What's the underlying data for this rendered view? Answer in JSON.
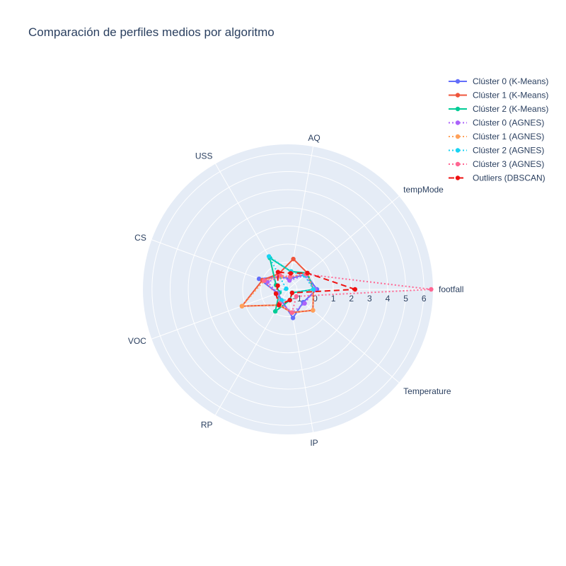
{
  "chart_data": {
    "type": "radar",
    "title": "Comparación de perfiles medios por algoritmo",
    "axes": [
      "footfall",
      "tempMode",
      "AQ",
      "USS",
      "CS",
      "VOC",
      "RP",
      "IP",
      "Temperature"
    ],
    "radial_range": [
      -1.5,
      6.5
    ],
    "radial_ticks": [
      -1,
      0,
      1,
      2,
      3,
      4,
      5,
      6
    ],
    "radial_tick_labels": [
      "−1",
      "0",
      "1",
      "2",
      "3",
      "4",
      "5",
      "6"
    ],
    "legend_position": "top-right",
    "series": [
      {
        "name": "Clúster 0 (K-Means)",
        "color": "#636efa",
        "dash": "solid",
        "values": [
          0.1,
          -0.2,
          -0.9,
          -0.7,
          0.2,
          -0.9,
          -0.8,
          0.1,
          -0.4
        ]
      },
      {
        "name": "Clúster 1 (K-Means)",
        "color": "#ef553b",
        "dash": "solid",
        "values": [
          -0.1,
          -0.1,
          0.2,
          -0.5,
          0.0,
          1.2,
          -0.5,
          -0.2,
          0.3
        ]
      },
      {
        "name": "Clúster 2 (K-Means)",
        "color": "#00cc96",
        "dash": "solid",
        "values": [
          -0.1,
          -0.1,
          -0.5,
          0.5,
          -0.8,
          -1.0,
          -0.1,
          -0.9,
          -1.2
        ]
      },
      {
        "name": "Clúster 0 (AGNES)",
        "color": "#ab63fa",
        "dash": "dot",
        "values": [
          0.0,
          -0.3,
          -1.0,
          -0.7,
          -0.3,
          -0.9,
          -0.7,
          -0.2,
          -0.3
        ]
      },
      {
        "name": "Clúster 1 (AGNES)",
        "color": "#ffa15a",
        "dash": "dot",
        "values": [
          -0.1,
          -0.1,
          -0.8,
          -0.7,
          -0.1,
          1.2,
          -0.5,
          -0.2,
          0.3
        ]
      },
      {
        "name": "Clúster 2 (AGNES)",
        "color": "#19d3f3",
        "dash": "dot",
        "values": [
          -0.1,
          -0.3,
          -0.5,
          0.6,
          -1.4,
          -0.8,
          -0.8,
          -0.9,
          -1.2
        ]
      },
      {
        "name": "Clúster 3 (AGNES)",
        "color": "#ff6692",
        "dash": "dot",
        "values": [
          6.4,
          -0.2,
          -0.8,
          -0.6,
          -0.1,
          -0.8,
          -0.6,
          -0.2,
          -0.9
        ]
      },
      {
        "name": "Outliers (DBSCAN)",
        "color": "#ee1111",
        "dash": "dash",
        "values": [
          2.2,
          -0.1,
          -0.6,
          -0.4,
          -0.9,
          -0.8,
          -0.5,
          -0.9,
          -1.2
        ]
      }
    ]
  }
}
